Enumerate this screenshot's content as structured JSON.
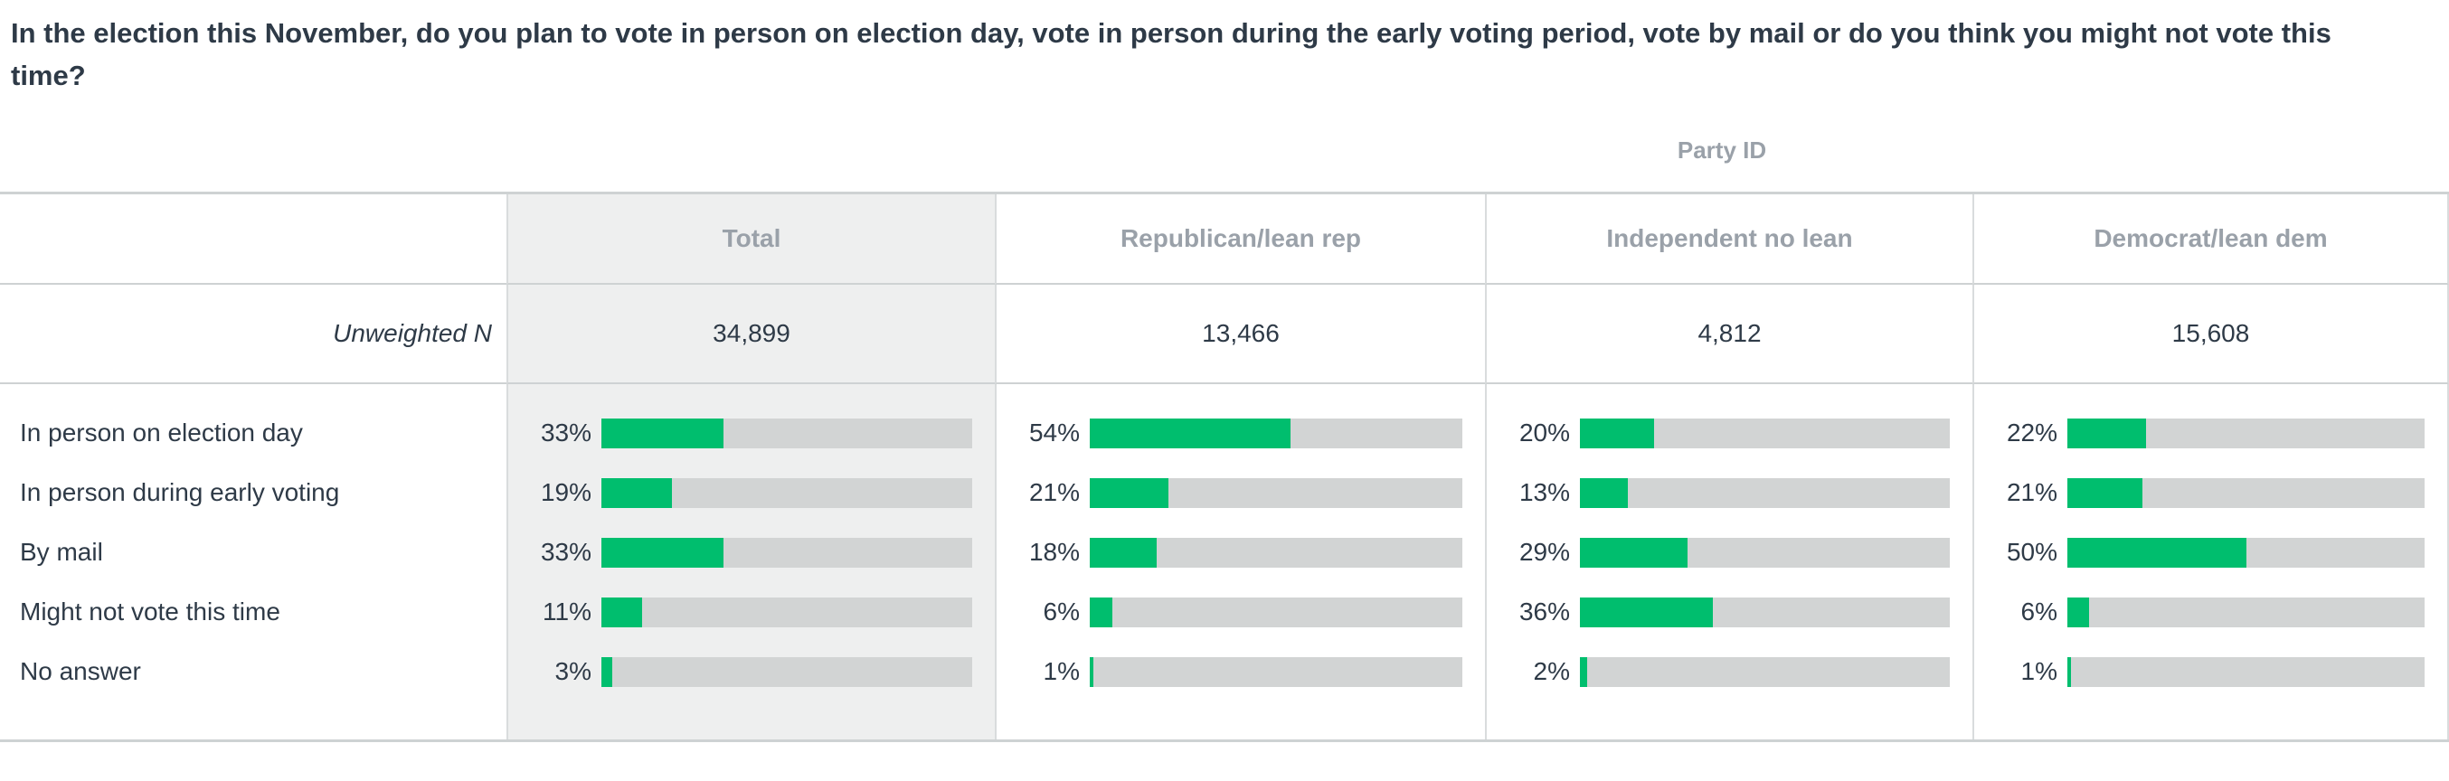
{
  "title": "In the election this November, do you plan to vote in person on election day, vote in person during the early voting period, vote by mail or do you think you might not vote this time?",
  "group_header": "Party ID",
  "table": {
    "unweighted_label": "Unweighted N",
    "columns": [
      {
        "label": "Total",
        "unweighted": "34,899"
      },
      {
        "label": "Republican/lean rep",
        "unweighted": "13,466"
      },
      {
        "label": "Independent no lean",
        "unweighted": "4,812"
      },
      {
        "label": "Democrat/lean dem",
        "unweighted": "15,608"
      }
    ],
    "rows": [
      {
        "label": "In person on election day",
        "display": [
          "33%",
          "54%",
          "20%",
          "22%"
        ],
        "values": [
          33,
          54,
          20,
          22
        ]
      },
      {
        "label": "In person during early voting",
        "display": [
          "19%",
          "21%",
          "13%",
          "21%"
        ],
        "values": [
          19,
          21,
          13,
          21
        ]
      },
      {
        "label": "By mail",
        "display": [
          "33%",
          "18%",
          "29%",
          "50%"
        ],
        "values": [
          33,
          18,
          29,
          50
        ]
      },
      {
        "label": "Might not vote this time",
        "display": [
          "11%",
          "6%",
          "36%",
          "6%"
        ],
        "values": [
          11,
          6,
          36,
          6
        ]
      },
      {
        "label": "No answer",
        "display": [
          "3%",
          "1%",
          "2%",
          "1%"
        ],
        "values": [
          3,
          1,
          2,
          1
        ]
      }
    ]
  },
  "colors": {
    "bar_fill": "#00be6e",
    "bar_track": "#d2d4d4",
    "total_column_bg": "#eeefef",
    "header_text": "#9aa1a9",
    "body_text": "#2e3a47",
    "border_strong": "#ced2d3",
    "border_light": "#d9dcdd"
  },
  "chart_data": {
    "type": "bar",
    "orientation": "horizontal",
    "title": "In the election this November, do you plan to vote in person on election day, vote in person during the early voting period, vote by mail or do you think you might not vote this time?",
    "group_header": "Party ID",
    "categories": [
      "In person on election day",
      "In person during early voting",
      "By mail",
      "Might not vote this time",
      "No answer"
    ],
    "series": [
      {
        "name": "Total",
        "unweighted_n": 34899,
        "values": [
          33,
          19,
          33,
          11,
          3
        ]
      },
      {
        "name": "Republican/lean rep",
        "unweighted_n": 13466,
        "values": [
          54,
          21,
          18,
          6,
          1
        ]
      },
      {
        "name": "Independent no lean",
        "unweighted_n": 4812,
        "values": [
          20,
          13,
          29,
          36,
          2
        ]
      },
      {
        "name": "Democrat/lean dem",
        "unweighted_n": 15608,
        "values": [
          22,
          21,
          50,
          6,
          1
        ]
      }
    ],
    "unit": "percent",
    "xlim": [
      0,
      100
    ],
    "grid": false,
    "legend_position": "column-headers"
  }
}
